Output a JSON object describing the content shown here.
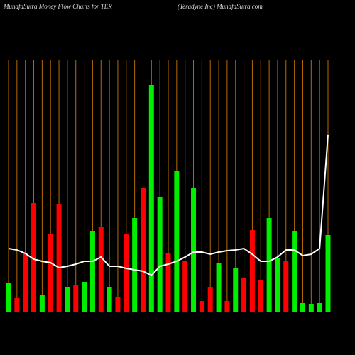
{
  "chart_data": {
    "type": "bar",
    "title": "MunafaSutra  Money Flow  Charts for TER",
    "subtitle": "(Teradyne   Inc) MunafaSutra.com",
    "values": [
      42,
      20,
      83,
      154,
      25,
      110,
      153,
      36,
      38,
      43,
      114,
      120,
      36,
      21,
      111,
      133,
      175,
      320,
      163,
      83,
      199,
      72,
      175,
      16,
      36,
      69,
      16,
      63,
      49,
      116,
      46,
      133,
      77,
      72,
      114,
      13,
      12,
      13,
      109
    ],
    "colors": [
      "#00ee00",
      "#ff0000",
      "#ff0000",
      "#ff0000",
      "#00ee00",
      "#ff0000",
      "#ff0000",
      "#00ee00",
      "#ff0000",
      "#00ee00",
      "#00ee00",
      "#ff0000",
      "#00ee00",
      "#ff0000",
      "#ff0000",
      "#00ee00",
      "#ff0000",
      "#00ee00",
      "#00ee00",
      "#ff0000",
      "#00ee00",
      "#ff0000",
      "#00ee00",
      "#ff0000",
      "#ff0000",
      "#00ee00",
      "#ff0000",
      "#00ee00",
      "#ff0000",
      "#ff0000",
      "#ff0000",
      "#00ee00",
      "#00ee00",
      "#ff0000",
      "#00ee00",
      "#00ee00",
      "#00ee00",
      "#00ee00",
      "#00ee00"
    ],
    "line": {
      "color": "#ffffff",
      "values": [
        90,
        88,
        83,
        75,
        72,
        70,
        63,
        65,
        68,
        72,
        72,
        78,
        65,
        65,
        62,
        60,
        58,
        52,
        65,
        68,
        72,
        78,
        85,
        85,
        82,
        85,
        87,
        88,
        90,
        82,
        72,
        72,
        78,
        88,
        88,
        80,
        82,
        90,
        250
      ]
    },
    "ylim": [
      0,
      340
    ]
  }
}
